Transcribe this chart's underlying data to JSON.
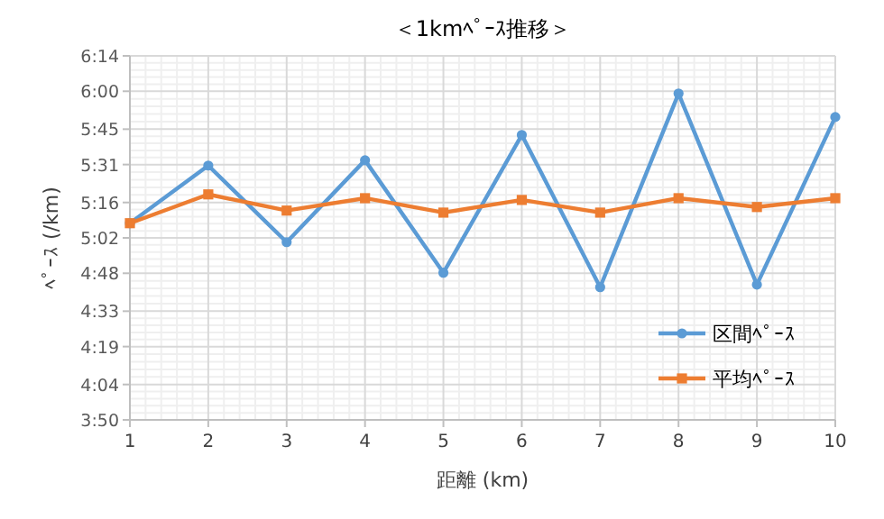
{
  "chart_data": {
    "type": "line",
    "title": "＜1kmﾍﾟｰｽ推移＞",
    "xlabel": "距離 (km)",
    "ylabel": "ﾍﾟｰｽ (/km)",
    "x": [
      1,
      2,
      3,
      4,
      5,
      6,
      7,
      8,
      9,
      10
    ],
    "series": [
      {
        "name": "区間ﾍﾟｰｽ",
        "color": "#5b9bd5",
        "marker": "circle",
        "values": [
          307.8,
          330.6,
          300.3,
          332.7,
          288.2,
          342.7,
          282.5,
          359.1,
          283.5,
          349.8
        ]
      },
      {
        "name": "平均ﾍﾟｰｽ",
        "color": "#ed7d31",
        "marker": "square",
        "values": [
          307.8,
          319.2,
          312.8,
          317.7,
          312.0,
          317.0,
          312.0,
          317.7,
          314.2,
          317.7
        ]
      }
    ],
    "xlim": [
      1,
      10
    ],
    "xticks": [
      1,
      2,
      3,
      4,
      5,
      6,
      7,
      8,
      9,
      10
    ],
    "ylim": [
      230,
      374
    ],
    "yticks": [
      {
        "value": 230,
        "label": "3:50"
      },
      {
        "value": 244,
        "label": "4:04"
      },
      {
        "value": 259,
        "label": "4:19"
      },
      {
        "value": 273,
        "label": "4:33"
      },
      {
        "value": 288,
        "label": "4:48"
      },
      {
        "value": 302,
        "label": "5:02"
      },
      {
        "value": 316,
        "label": "5:16"
      },
      {
        "value": 331,
        "label": "5:31"
      },
      {
        "value": 345,
        "label": "5:45"
      },
      {
        "value": 360,
        "label": "6:00"
      },
      {
        "value": 374,
        "label": "6:14"
      }
    ],
    "grid": true,
    "legend": "bottom right",
    "line_style": "solid"
  }
}
